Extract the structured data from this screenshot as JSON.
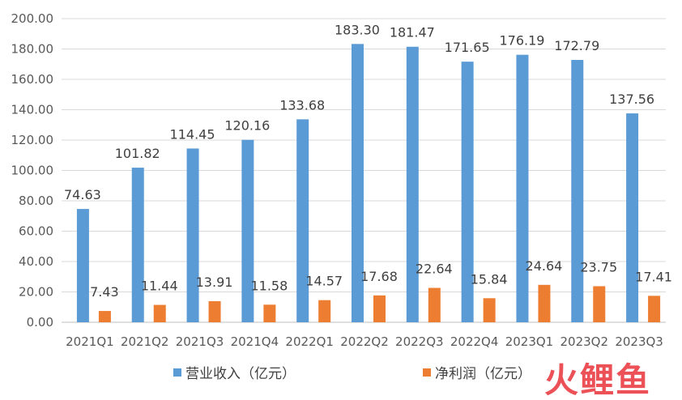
{
  "chart_data": {
    "type": "bar",
    "categories": [
      "2021Q1",
      "2021Q2",
      "2021Q3",
      "2021Q4",
      "2022Q1",
      "2022Q2",
      "2022Q3",
      "2022Q4",
      "2023Q1",
      "2023Q2",
      "2023Q3"
    ],
    "series": [
      {
        "name": "营业收入（亿元）",
        "color": "#5B9BD5",
        "values": [
          74.63,
          101.82,
          114.45,
          120.16,
          133.68,
          183.3,
          181.47,
          171.65,
          176.19,
          172.79,
          137.56
        ],
        "labels": [
          "74.63",
          "101.82",
          "114.45",
          "120.16",
          "133.68",
          "183.30",
          "181.47",
          "171.65",
          "176.19",
          "172.79",
          "137.56"
        ]
      },
      {
        "name": "净利润（亿元）",
        "color": "#ED7D31",
        "values": [
          7.43,
          11.44,
          13.91,
          11.58,
          14.57,
          17.68,
          22.64,
          15.84,
          24.64,
          23.75,
          17.41
        ],
        "labels": [
          "7.43",
          "11.44",
          "13.91",
          "11.58",
          "14.57",
          "17.68",
          "22.64",
          "15.84",
          "24.64",
          "23.75",
          "17.41"
        ]
      }
    ],
    "yticks": [
      "0.00",
      "20.00",
      "40.00",
      "60.00",
      "80.00",
      "100.00",
      "120.00",
      "140.00",
      "160.00",
      "180.00",
      "200.00"
    ],
    "ylim": [
      0,
      200
    ],
    "title": "",
    "xlabel": "",
    "ylabel": "",
    "grid": true,
    "legend_position": "bottom"
  },
  "watermark": {
    "text": "火鲤鱼",
    "color": "#E8333A"
  }
}
